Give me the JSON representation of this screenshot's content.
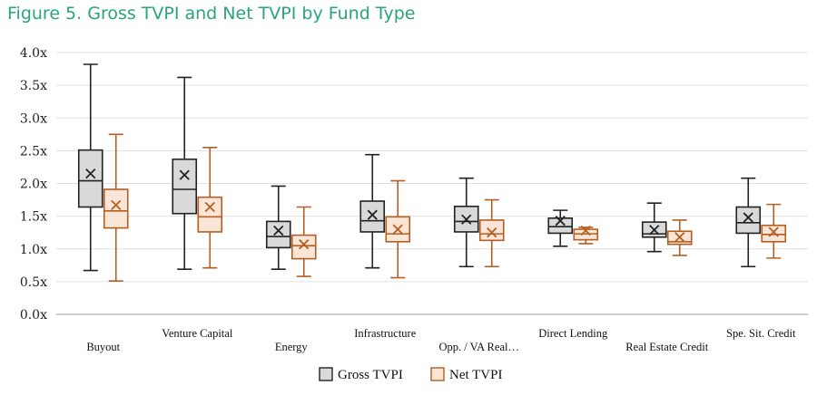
{
  "figure_title": "Figure 5. Gross TVPI and Net TVPI by Fund Type",
  "colors": {
    "title": "#2aa37f",
    "gross_stroke": "#222222",
    "gross_fill": "#d9d9d9",
    "net_stroke": "#b55e22",
    "net_fill": "#fbe5d6",
    "grid": "#e0e0e0",
    "axis": "#9a9a9a"
  },
  "legend": [
    "Gross TVPI",
    "Net TVPI"
  ],
  "chart_data": {
    "type": "box",
    "title": "Figure 5. Gross TVPI and Net TVPI by Fund Type",
    "xlabel": "",
    "ylabel": "",
    "ylim": [
      0,
      4
    ],
    "y_ticks": [
      "0.0x",
      "0.5x",
      "1.0x",
      "1.5x",
      "2.0x",
      "2.5x",
      "3.0x",
      "3.5x",
      "4.0x"
    ],
    "grid": "horizontal",
    "legend_position": "bottom",
    "categories": [
      "Buyout",
      "Venture Capital",
      "Energy",
      "Infrastructure",
      "Opp. / VA Real…",
      "Direct Lending",
      "Real Estate Credit",
      "Spe. Sit. Credit"
    ],
    "series": [
      {
        "name": "Gross TVPI",
        "boxes": [
          {
            "min": 0.67,
            "q1": 1.64,
            "median": 2.04,
            "q3": 2.51,
            "max": 3.82,
            "mean": 2.15
          },
          {
            "min": 0.69,
            "q1": 1.54,
            "median": 1.91,
            "q3": 2.37,
            "max": 3.62,
            "mean": 2.13
          },
          {
            "min": 0.69,
            "q1": 1.02,
            "median": 1.19,
            "q3": 1.42,
            "max": 1.96,
            "mean": 1.28
          },
          {
            "min": 0.71,
            "q1": 1.26,
            "median": 1.43,
            "q3": 1.73,
            "max": 2.44,
            "mean": 1.52
          },
          {
            "min": 0.73,
            "q1": 1.26,
            "median": 1.42,
            "q3": 1.65,
            "max": 2.08,
            "mean": 1.45
          },
          {
            "min": 1.04,
            "q1": 1.24,
            "median": 1.34,
            "q3": 1.47,
            "max": 1.59,
            "mean": 1.43
          },
          {
            "min": 0.96,
            "q1": 1.18,
            "median": 1.23,
            "q3": 1.41,
            "max": 1.7,
            "mean": 1.29
          },
          {
            "min": 0.73,
            "q1": 1.24,
            "median": 1.4,
            "q3": 1.64,
            "max": 2.08,
            "mean": 1.48
          }
        ]
      },
      {
        "name": "Net TVPI",
        "boxes": [
          {
            "min": 0.51,
            "q1": 1.32,
            "median": 1.58,
            "q3": 1.91,
            "max": 2.75,
            "mean": 1.67
          },
          {
            "min": 0.71,
            "q1": 1.26,
            "median": 1.49,
            "q3": 1.79,
            "max": 2.55,
            "mean": 1.64
          },
          {
            "min": 0.58,
            "q1": 0.85,
            "median": 1.05,
            "q3": 1.21,
            "max": 1.64,
            "mean": 1.07
          },
          {
            "min": 0.56,
            "q1": 1.11,
            "median": 1.23,
            "q3": 1.49,
            "max": 2.04,
            "mean": 1.3
          },
          {
            "min": 0.73,
            "q1": 1.13,
            "median": 1.23,
            "q3": 1.44,
            "max": 1.75,
            "mean": 1.25
          },
          {
            "min": 1.08,
            "q1": 1.14,
            "median": 1.23,
            "q3": 1.3,
            "max": 1.33,
            "mean": 1.28
          },
          {
            "min": 0.9,
            "q1": 1.07,
            "median": 1.11,
            "q3": 1.27,
            "max": 1.44,
            "mean": 1.18
          },
          {
            "min": 0.86,
            "q1": 1.11,
            "median": 1.22,
            "q3": 1.36,
            "max": 1.68,
            "mean": 1.26
          }
        ]
      }
    ]
  }
}
